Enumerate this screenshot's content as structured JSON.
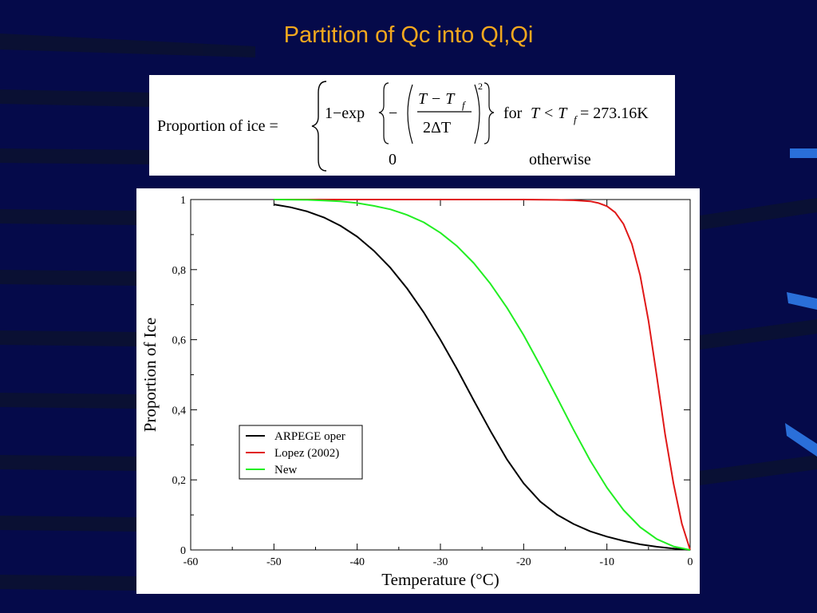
{
  "slide": {
    "title": "Partition of Qc into Ql,Qi",
    "colors": {
      "background": "#050a4a",
      "title": "#f2a81e",
      "stripes": "#0b1230",
      "accent": "#2a6fd9"
    }
  },
  "formula": {
    "lhs": "Proportion of ice =",
    "case1": {
      "one_minus_exp": "1−exp",
      "minus": "−",
      "numerator": "T − T",
      "subscript_f": "f",
      "denominator": "2ΔT",
      "exponent": "2",
      "condition_for": "for",
      "condition": "T < T",
      "condition_tail": " = 273.16K"
    },
    "case2": {
      "value": "0",
      "condition": "otherwise"
    }
  },
  "chart_data": {
    "type": "line",
    "xlabel": "Temperature (°C)",
    "ylabel": "Proportion of Ice",
    "xlim": [
      -60,
      0
    ],
    "ylim": [
      0,
      1
    ],
    "x_ticks": [
      -60,
      -50,
      -40,
      -30,
      -20,
      -10,
      0
    ],
    "x_tick_labels": [
      "-60",
      "-50",
      "-40",
      "-30",
      "-20",
      "-10",
      "0"
    ],
    "y_ticks": [
      0,
      0.2,
      0.4,
      0.6,
      0.8,
      1
    ],
    "y_tick_labels": [
      "0",
      "0,2",
      "0,4",
      "0,6",
      "0,8",
      "1"
    ],
    "grid": false,
    "legend_position": "lower-left",
    "series": [
      {
        "name": "ARPEGE oper",
        "color": "#000000",
        "x": [
          -50,
          -48,
          -46,
          -44,
          -42,
          -40,
          -38,
          -36,
          -34,
          -32,
          -30,
          -28,
          -26,
          -24,
          -22,
          -20,
          -18,
          -16,
          -14,
          -12,
          -10,
          -8,
          -6,
          -4,
          -2,
          0
        ],
        "y": [
          0.986,
          0.978,
          0.966,
          0.949,
          0.925,
          0.894,
          0.854,
          0.805,
          0.746,
          0.678,
          0.6,
          0.516,
          0.427,
          0.34,
          0.258,
          0.19,
          0.138,
          0.101,
          0.074,
          0.053,
          0.038,
          0.026,
          0.016,
          0.009,
          0.004,
          0.0
        ]
      },
      {
        "name": "Lopez (2002)",
        "color": "#e01818",
        "x": [
          -50,
          -30,
          -20,
          -16,
          -14,
          -12,
          -11,
          -10,
          -9,
          -8,
          -7,
          -6,
          -5,
          -4,
          -3,
          -2,
          -1,
          0
        ],
        "y": [
          1.0,
          1.0,
          1.0,
          0.999,
          0.998,
          0.995,
          0.99,
          0.981,
          0.963,
          0.93,
          0.873,
          0.783,
          0.654,
          0.494,
          0.329,
          0.19,
          0.075,
          0.0
        ]
      },
      {
        "name": "New",
        "color": "#22ee22",
        "x": [
          -50,
          -46,
          -44,
          -42,
          -40,
          -38,
          -36,
          -34,
          -32,
          -30,
          -28,
          -26,
          -24,
          -22,
          -20,
          -18,
          -16,
          -14,
          -12,
          -10,
          -8,
          -6,
          -4,
          -2,
          0
        ],
        "y": [
          1.0,
          0.999,
          0.997,
          0.995,
          0.99,
          0.982,
          0.972,
          0.956,
          0.935,
          0.905,
          0.867,
          0.819,
          0.76,
          0.691,
          0.613,
          0.526,
          0.435,
          0.343,
          0.255,
          0.178,
          0.114,
          0.065,
          0.031,
          0.01,
          0.0
        ]
      }
    ]
  }
}
